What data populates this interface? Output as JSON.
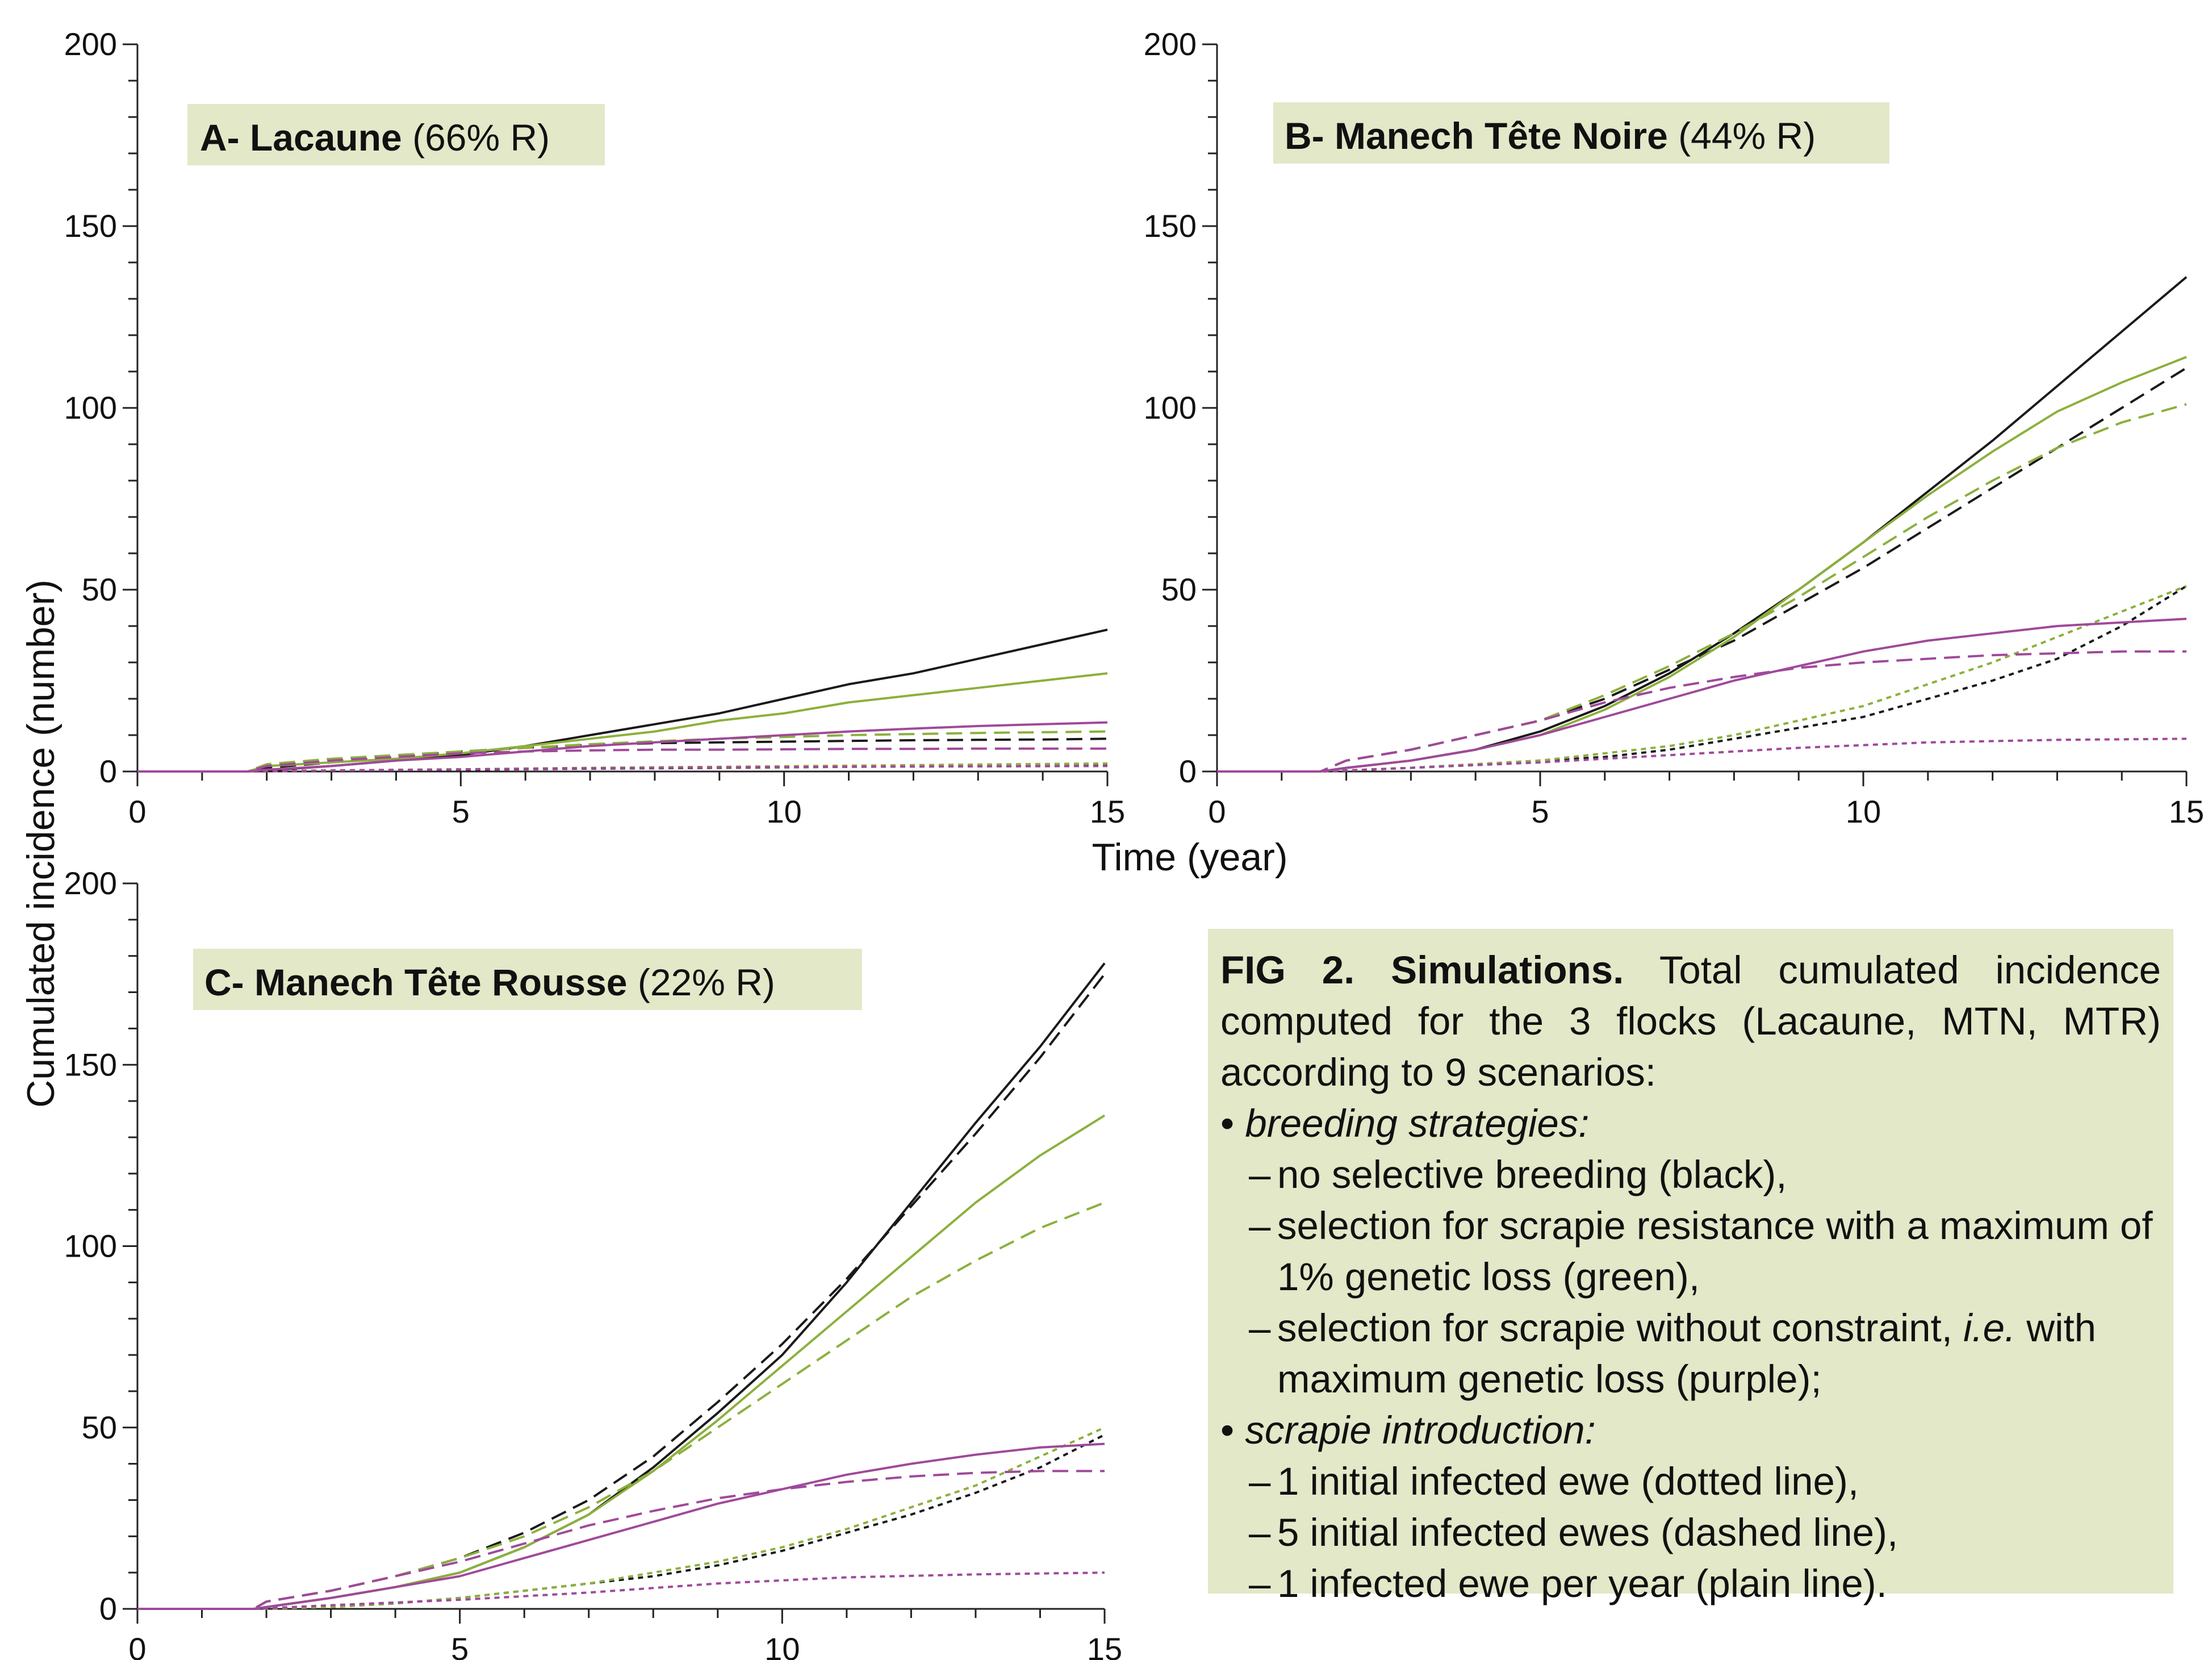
{
  "chart_data": [
    {
      "type": "line",
      "panel": "A",
      "title_bold": "A- Lacaune",
      "title_rest": " (66% R)",
      "xlim": [
        0,
        15
      ],
      "ylim": [
        0,
        200
      ],
      "xticks": [
        "0",
        "5",
        "10",
        "15"
      ],
      "yticks": [
        "0",
        "50",
        "100",
        "150",
        "200"
      ],
      "series": [
        {
          "strategy": "black",
          "introduction": "plain",
          "x": [
            0,
            1.7,
            2,
            3,
            4,
            5,
            6,
            7,
            8,
            9,
            10,
            11,
            12,
            13,
            14,
            15
          ],
          "y": [
            0,
            0,
            0.3,
            1.5,
            3,
            4.5,
            7,
            10,
            13,
            16,
            20,
            24,
            27,
            31,
            35,
            39
          ]
        },
        {
          "strategy": "black",
          "introduction": "dashed",
          "x": [
            0,
            1.7,
            2,
            3,
            4,
            5,
            6,
            7,
            8,
            9,
            10,
            11,
            12,
            13,
            14,
            15
          ],
          "y": [
            0,
            0,
            1,
            2.5,
            4,
            5.5,
            6.5,
            7.3,
            7.8,
            8,
            8.2,
            8.4,
            8.6,
            8.7,
            8.8,
            9
          ]
        },
        {
          "strategy": "black",
          "introduction": "dotted",
          "x": [
            0,
            1.7,
            3,
            5,
            7,
            9,
            11,
            13,
            15
          ],
          "y": [
            0,
            0,
            0.2,
            0.5,
            0.8,
            1,
            1.3,
            1.5,
            1.7
          ]
        },
        {
          "strategy": "green",
          "introduction": "plain",
          "x": [
            0,
            1.7,
            2,
            3,
            4,
            5,
            6,
            7,
            8,
            9,
            10,
            11,
            12,
            13,
            14,
            15
          ],
          "y": [
            0,
            0,
            1.5,
            2.5,
            3.5,
            5,
            7,
            9,
            11,
            14,
            16,
            19,
            21,
            23,
            25,
            27
          ]
        },
        {
          "strategy": "green",
          "introduction": "dashed",
          "x": [
            0,
            1.7,
            2,
            3,
            4,
            5,
            6,
            7,
            8,
            9,
            10,
            11,
            12,
            13,
            14,
            15
          ],
          "y": [
            0,
            0,
            2,
            3.5,
            4.5,
            5.5,
            6.5,
            7.5,
            8.3,
            9,
            9.5,
            10,
            10.3,
            10.6,
            10.8,
            11
          ]
        },
        {
          "strategy": "green",
          "introduction": "dotted",
          "x": [
            0,
            1.7,
            3,
            5,
            7,
            9,
            11,
            13,
            15
          ],
          "y": [
            0,
            0,
            0.3,
            0.6,
            1,
            1.3,
            1.6,
            1.9,
            2.2
          ]
        },
        {
          "strategy": "purple",
          "introduction": "plain",
          "x": [
            0,
            1.7,
            2,
            3,
            4,
            5,
            6,
            7,
            8,
            9,
            10,
            11,
            12,
            13,
            14,
            15
          ],
          "y": [
            0,
            0,
            0.5,
            1.5,
            3,
            4,
            5.5,
            7,
            8,
            9,
            10,
            11,
            11.8,
            12.5,
            13,
            13.5
          ]
        },
        {
          "strategy": "purple",
          "introduction": "dashed",
          "x": [
            0,
            1.7,
            2,
            3,
            4,
            5,
            6,
            7,
            8,
            9,
            10,
            11,
            12,
            13,
            14,
            15
          ],
          "y": [
            0,
            0,
            1.5,
            3,
            4,
            5,
            5.5,
            5.8,
            6,
            6,
            6.1,
            6.2,
            6.2,
            6.3,
            6.3,
            6.3
          ]
        },
        {
          "strategy": "purple",
          "introduction": "dotted",
          "x": [
            0,
            1.7,
            3,
            5,
            7,
            9,
            11,
            13,
            15
          ],
          "y": [
            0,
            0,
            0.3,
            0.6,
            0.9,
            1.1,
            1.3,
            1.4,
            1.5
          ]
        }
      ]
    },
    {
      "type": "line",
      "panel": "B",
      "title_bold": "B- Manech Tête Noire",
      "title_rest": " (44% R)",
      "xlim": [
        0,
        15
      ],
      "ylim": [
        0,
        200
      ],
      "xticks": [
        "0",
        "5",
        "10",
        "15"
      ],
      "yticks": [
        "0",
        "50",
        "100",
        "150",
        "200"
      ],
      "series": [
        {
          "strategy": "black",
          "introduction": "plain",
          "x": [
            0,
            1.6,
            2,
            3,
            4,
            5,
            6,
            7,
            8,
            9,
            10,
            11,
            12,
            13,
            14,
            15
          ],
          "y": [
            0,
            0,
            1,
            3,
            6,
            11,
            18,
            27,
            38,
            50,
            63,
            77,
            91,
            106,
            121,
            136
          ]
        },
        {
          "strategy": "black",
          "introduction": "dashed",
          "x": [
            0,
            1.6,
            2,
            3,
            4,
            5,
            6,
            7,
            8,
            9,
            10,
            11,
            12,
            13,
            14,
            15
          ],
          "y": [
            0,
            0,
            3,
            6,
            10,
            14,
            20,
            28,
            36,
            46,
            56,
            67,
            78,
            89,
            100,
            111
          ]
        },
        {
          "strategy": "black",
          "introduction": "dotted",
          "x": [
            0,
            1.6,
            3,
            4,
            5,
            6,
            7,
            8,
            9,
            10,
            11,
            12,
            13,
            14,
            15
          ],
          "y": [
            0,
            0,
            1,
            2,
            3,
            4,
            6,
            9,
            12,
            15,
            20,
            25,
            31,
            40,
            51
          ]
        },
        {
          "strategy": "green",
          "introduction": "plain",
          "x": [
            0,
            1.6,
            2,
            3,
            4,
            5,
            6,
            7,
            8,
            9,
            10,
            11,
            12,
            13,
            14,
            15
          ],
          "y": [
            0,
            0,
            1,
            3,
            6,
            10,
            17,
            26,
            37,
            50,
            63,
            76,
            88,
            99,
            107,
            114
          ]
        },
        {
          "strategy": "green",
          "introduction": "dashed",
          "x": [
            0,
            1.6,
            2,
            3,
            4,
            5,
            6,
            7,
            8,
            9,
            10,
            11,
            12,
            13,
            14,
            15
          ],
          "y": [
            0,
            0,
            3,
            6,
            10,
            14,
            21,
            29,
            38,
            48,
            59,
            70,
            80,
            89,
            96,
            101
          ]
        },
        {
          "strategy": "green",
          "introduction": "dotted",
          "x": [
            0,
            1.6,
            3,
            4,
            5,
            6,
            7,
            8,
            9,
            10,
            11,
            12,
            13,
            14,
            15
          ],
          "y": [
            0,
            0,
            1,
            2,
            3,
            5,
            7,
            10,
            14,
            18,
            24,
            30,
            37,
            44,
            51
          ]
        },
        {
          "strategy": "purple",
          "introduction": "plain",
          "x": [
            0,
            1.6,
            2,
            3,
            4,
            5,
            6,
            7,
            8,
            9,
            10,
            11,
            12,
            13,
            14,
            15
          ],
          "y": [
            0,
            0,
            1,
            3,
            6,
            10,
            15,
            20,
            25,
            29,
            33,
            36,
            38,
            40,
            41,
            42
          ]
        },
        {
          "strategy": "purple",
          "introduction": "dashed",
          "x": [
            0,
            1.6,
            2,
            3,
            4,
            5,
            6,
            7,
            8,
            9,
            10,
            11,
            12,
            13,
            14,
            15
          ],
          "y": [
            0,
            0,
            3,
            6,
            10,
            14,
            19,
            23,
            26,
            28.5,
            30,
            31,
            32,
            32.5,
            33,
            33
          ]
        },
        {
          "strategy": "purple",
          "introduction": "dotted",
          "x": [
            0,
            1.6,
            3,
            5,
            7,
            9,
            11,
            13,
            15
          ],
          "y": [
            0,
            0,
            1,
            2.5,
            4.5,
            6.5,
            8,
            8.7,
            9
          ]
        }
      ]
    },
    {
      "type": "line",
      "panel": "C",
      "title_bold": "C- Manech Tête Rousse",
      "title_rest": " (22% R)",
      "xlim": [
        0,
        15
      ],
      "ylim": [
        0,
        200
      ],
      "xticks": [
        "0",
        "5",
        "10",
        "15"
      ],
      "yticks": [
        "0",
        "50",
        "100",
        "150",
        "200"
      ],
      "series": [
        {
          "strategy": "black",
          "introduction": "plain",
          "x": [
            0,
            1.8,
            2,
            3,
            4,
            5,
            6,
            7,
            8,
            9,
            10,
            11,
            12,
            13,
            14,
            15
          ],
          "y": [
            0,
            0,
            0.5,
            3,
            6,
            10,
            17,
            26,
            39,
            54,
            70,
            90,
            112,
            134,
            155,
            178
          ]
        },
        {
          "strategy": "black",
          "introduction": "dashed",
          "x": [
            0,
            1.8,
            2,
            3,
            4,
            5,
            6,
            7,
            8,
            9,
            10,
            11,
            12,
            13,
            14,
            15
          ],
          "y": [
            0,
            0,
            2,
            5,
            9,
            14,
            21,
            30,
            42,
            57,
            73,
            91,
            111,
            131,
            152,
            175
          ]
        },
        {
          "strategy": "black",
          "introduction": "dotted",
          "x": [
            0,
            1.8,
            3,
            4,
            5,
            6,
            7,
            8,
            9,
            10,
            11,
            12,
            13,
            14,
            15
          ],
          "y": [
            0,
            0,
            0.5,
            1.5,
            3,
            5,
            7,
            9,
            12,
            16,
            21,
            26,
            32,
            39,
            48
          ]
        },
        {
          "strategy": "green",
          "introduction": "plain",
          "x": [
            0,
            1.8,
            2,
            3,
            4,
            5,
            6,
            7,
            8,
            9,
            10,
            11,
            12,
            13,
            14,
            15
          ],
          "y": [
            0,
            0,
            0.5,
            3,
            6,
            10,
            17,
            26,
            38,
            52,
            67,
            82,
            97,
            112,
            125,
            136
          ]
        },
        {
          "strategy": "green",
          "introduction": "dashed",
          "x": [
            0,
            1.8,
            2,
            3,
            4,
            5,
            6,
            7,
            8,
            9,
            10,
            11,
            12,
            13,
            14,
            15
          ],
          "y": [
            0,
            0,
            2,
            5,
            9,
            14,
            20,
            28,
            38,
            50,
            62,
            74,
            86,
            96,
            105,
            112
          ]
        },
        {
          "strategy": "green",
          "introduction": "dotted",
          "x": [
            0,
            1.8,
            3,
            4,
            5,
            6,
            7,
            8,
            9,
            10,
            11,
            12,
            13,
            14,
            15
          ],
          "y": [
            0,
            0,
            0.5,
            1.5,
            3,
            5,
            7,
            10,
            13,
            17,
            22,
            28,
            34,
            42,
            50
          ]
        },
        {
          "strategy": "purple",
          "introduction": "plain",
          "x": [
            0,
            1.8,
            2,
            3,
            4,
            5,
            6,
            7,
            8,
            9,
            10,
            11,
            12,
            13,
            14,
            15
          ],
          "y": [
            0,
            0,
            0.5,
            3,
            6,
            9,
            14,
            19,
            24,
            29,
            33,
            37,
            40,
            42.5,
            44.5,
            45.5
          ]
        },
        {
          "strategy": "purple",
          "introduction": "dashed",
          "x": [
            0,
            1.8,
            2,
            3,
            4,
            5,
            6,
            7,
            8,
            9,
            10,
            11,
            12,
            13,
            14,
            15
          ],
          "y": [
            0,
            0,
            2,
            5,
            9,
            13,
            18,
            23,
            27,
            30.5,
            33,
            35,
            36.5,
            37.5,
            38,
            38
          ]
        },
        {
          "strategy": "purple",
          "introduction": "dotted",
          "x": [
            0,
            1.8,
            3,
            5,
            7,
            9,
            11,
            13,
            15
          ],
          "y": [
            0,
            0,
            1,
            2.5,
            4.5,
            7,
            8.7,
            9.5,
            10
          ]
        }
      ]
    }
  ],
  "shared_xlabel": "Time (year)",
  "shared_ylabel": "Cumulated incidence (number)",
  "colors": {
    "black": "#1a1a1a",
    "green": "#8cb03c",
    "purple": "#a0499a"
  },
  "dash_styles": {
    "plain": "",
    "dashed": "28 14",
    "dotted": "9 8"
  },
  "caption": {
    "head_bold": "FIG 2. Simulations.",
    "head_text": " Total cumulated incidence computed for the 3 flocks (Lacaune, MTN, MTR) according to 9 scenarios:",
    "bullet": "•",
    "dash": "–",
    "breeding_label": "breeding strategies:",
    "breeding_1": "no selective breeding (black),",
    "breeding_2": "selection for scrapie resistance with a maximum of 1% genetic loss (green),",
    "breeding_3_a": "selection for scrapie without constraint, ",
    "breeding_3_ie": "i.e.",
    "breeding_3_b": " with maximum genetic loss (purple);",
    "intro_label": "scrapie introduction:",
    "intro_1": "1 initial infected ewe (dotted line),",
    "intro_2": "5 initial infected ewes (dashed line),",
    "intro_3": "1 infected ewe per year (plain line)."
  }
}
